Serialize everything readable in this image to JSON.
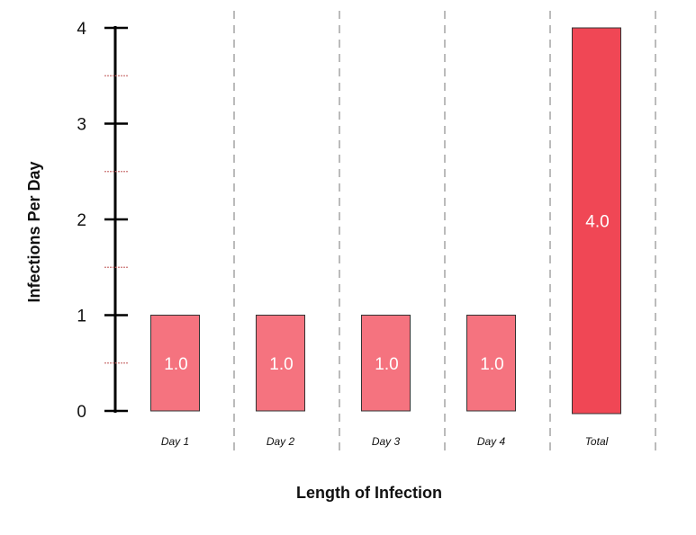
{
  "chart_data": {
    "type": "bar",
    "title": "",
    "xlabel": "Length of Infection",
    "ylabel": "Infections Per Day",
    "categories": [
      "Day 1",
      "Day 2",
      "Day 3",
      "Day 4",
      "Total"
    ],
    "values": [
      1.0,
      1.0,
      1.0,
      1.0,
      4.0
    ],
    "data_labels": [
      "1.0",
      "1.0",
      "1.0",
      "1.0",
      "4.0"
    ],
    "yticks": [
      "0",
      "1",
      "2",
      "3",
      "4"
    ],
    "ylim": [
      0,
      4
    ],
    "grid": "vertical dashed separators between categories",
    "colors": {
      "bar": "#f5737f",
      "total_bar": "#f04755",
      "bar_border": "#333333",
      "axis": "#000000",
      "separator": "#bbbbbb",
      "minor_tick": "#cc7777"
    }
  }
}
